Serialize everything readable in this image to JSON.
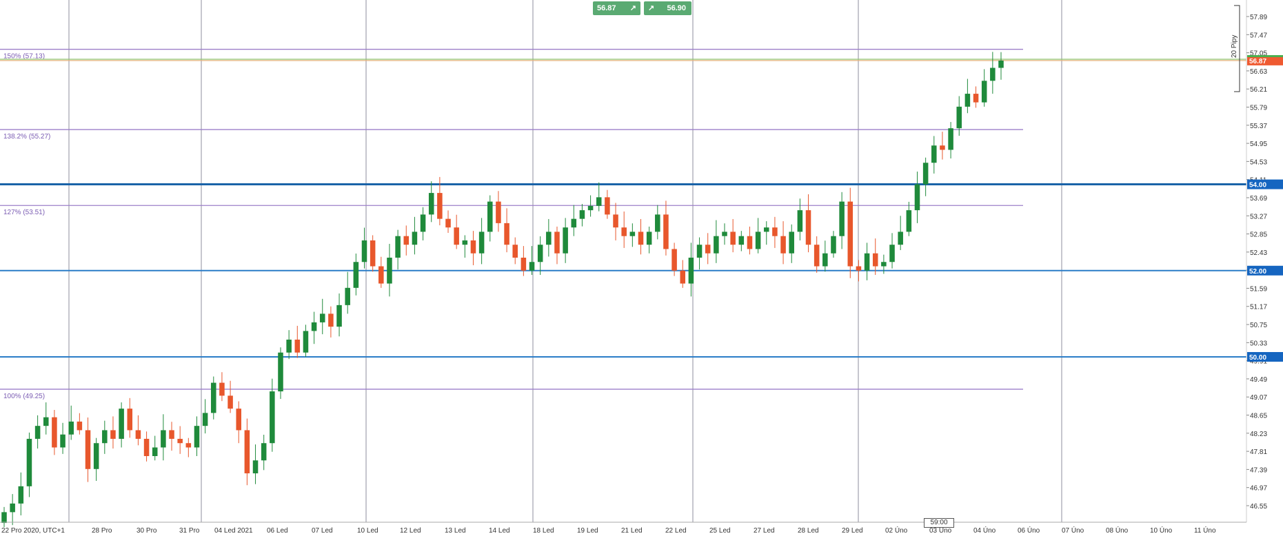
{
  "chart_data": {
    "type": "candlestick",
    "timezone_label": "UTC+1",
    "y_axis_ticks": [
      "57.89",
      "57.47",
      "57.05",
      "56.63",
      "56.21",
      "55.79",
      "55.37",
      "54.95",
      "54.53",
      "54.11",
      "53.69",
      "53.27",
      "52.85",
      "52.43",
      "52.01",
      "51.59",
      "51.17",
      "50.75",
      "50.33",
      "49.91",
      "49.49",
      "49.07",
      "48.65",
      "48.23",
      "47.81",
      "47.39",
      "46.97",
      "46.55"
    ],
    "x_axis_labels": [
      "22 Pro 2020, UTC+1",
      "28 Pro",
      "30 Pro",
      "31 Pro",
      "04 Led 2021",
      "06 Led",
      "07 Led",
      "10 Led",
      "12 Led",
      "13 Led",
      "14 Led",
      "18 Led",
      "19 Led",
      "21 Led",
      "22 Led",
      "25 Led",
      "27 Led",
      "28 Led",
      "29 Led",
      "02 Úno",
      "03 Úno",
      "04 Úno",
      "06 Úno",
      "07 Úno",
      "08 Úno",
      "10 Úno",
      "11 Úno"
    ],
    "fibonacci_levels": [
      {
        "label": "150% (57.13)",
        "value": 57.13
      },
      {
        "label": "138.2% (55.27)",
        "value": 55.27
      },
      {
        "label": "127% (53.51)",
        "value": 53.51
      },
      {
        "label": "100% (49.25)",
        "value": 49.25
      }
    ],
    "horizontal_levels": [
      {
        "label": "54.00",
        "value": 54.0,
        "weight": "thick"
      },
      {
        "label": "52.00",
        "value": 52.0,
        "weight": "normal"
      },
      {
        "label": "50.00",
        "value": 50.0,
        "weight": "normal"
      }
    ],
    "current_price": {
      "label": "56.87",
      "value": 56.87
    },
    "bid": "56.87",
    "ask": "56.90",
    "ask_line_value": 56.9,
    "spread_scale_label": "20 Pipy",
    "countdown": "59:00",
    "close_path": [
      46.4,
      46.6,
      47.0,
      48.1,
      48.4,
      48.6,
      47.9,
      48.2,
      48.5,
      48.3,
      47.4,
      48.0,
      48.3,
      48.1,
      48.8,
      48.3,
      48.1,
      47.7,
      47.9,
      48.3,
      48.1,
      48.0,
      47.9,
      48.4,
      48.7,
      49.4,
      49.1,
      48.8,
      48.3,
      47.3,
      47.6,
      48.0,
      49.2,
      50.1,
      50.4,
      50.1,
      50.6,
      50.8,
      51.0,
      50.7,
      51.2,
      51.6,
      52.2,
      52.7,
      52.1,
      51.7,
      52.3,
      52.8,
      52.6,
      52.9,
      53.3,
      53.8,
      53.2,
      53.0,
      52.6,
      52.7,
      52.4,
      52.9,
      53.6,
      53.1,
      52.6,
      52.3,
      52.0,
      52.2,
      52.6,
      52.9,
      52.4,
      53.0,
      53.2,
      53.4,
      53.5,
      53.7,
      53.3,
      53.0,
      52.8,
      52.9,
      52.6,
      52.9,
      53.3,
      52.5,
      52.0,
      51.7,
      52.3,
      52.6,
      52.4,
      52.8,
      52.9,
      52.6,
      52.8,
      52.5,
      52.9,
      53.0,
      52.8,
      52.4,
      52.9,
      53.4,
      52.6,
      52.1,
      52.4,
      52.8,
      53.6,
      52.1,
      52.0,
      52.4,
      52.1,
      52.2,
      52.6,
      52.9,
      53.4,
      54.0,
      54.5,
      54.9,
      54.8,
      55.3,
      55.8,
      56.1,
      55.9,
      56.4,
      56.7,
      56.87
    ]
  }
}
